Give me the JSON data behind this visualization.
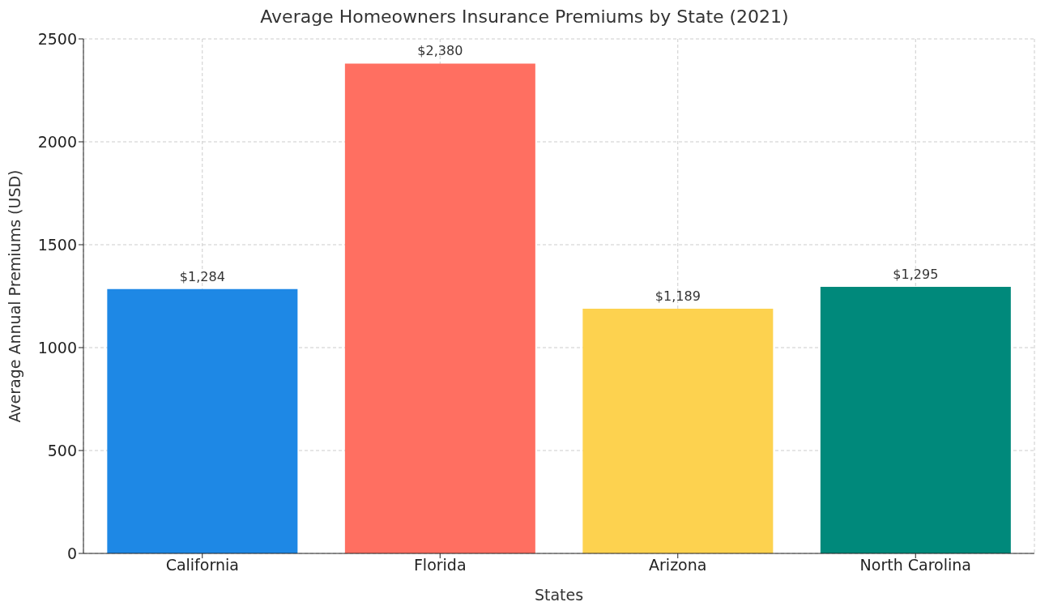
{
  "chart_data": {
    "type": "bar",
    "title": "Average Homeowners Insurance Premiums by State (2021)",
    "xlabel": "States",
    "ylabel": "Average Annual Premiums (USD)",
    "categories": [
      "California",
      "Florida",
      "Arizona",
      "North Carolina"
    ],
    "values": [
      1284,
      2380,
      1189,
      1295
    ],
    "colors": [
      "#1e88e5",
      "#ff6f61",
      "#fdd24f",
      "#00897b"
    ],
    "value_labels": [
      "$1,284",
      "$2,380",
      "$1,189",
      "$1,295"
    ],
    "ylim": [
      0,
      2500
    ],
    "yticks": [
      0,
      500,
      1000,
      1500,
      2000,
      2500
    ],
    "grid": true
  }
}
